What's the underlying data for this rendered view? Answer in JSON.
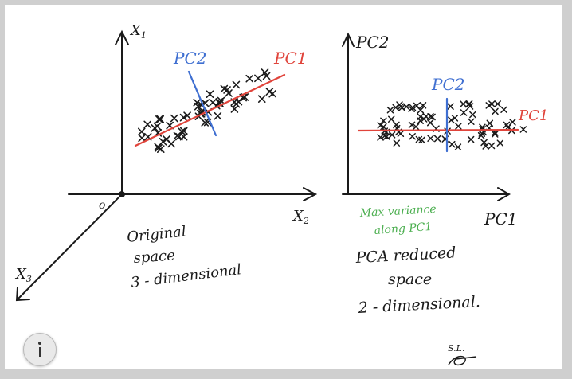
{
  "left_plot": {
    "axis_x1": "X",
    "axis_x1_sub": "1",
    "axis_x2": "X",
    "axis_x2_sub": "2",
    "axis_x3": "X",
    "axis_x3_sub": "3",
    "origin": "o",
    "pc1_label": "PC1",
    "pc2_label": "PC2",
    "caption": [
      "Original",
      "space",
      "3 - dimensional"
    ]
  },
  "right_plot": {
    "axis_y": "PC2",
    "axis_x": "PC1",
    "pc1_label": "PC1",
    "pc2_label": "PC2",
    "note": [
      "Max variance",
      "along PC1"
    ],
    "caption": [
      "PCA  reduced",
      "space",
      "2 - dimensional."
    ]
  },
  "signature": "S.L.",
  "colors": {
    "background": "#cfcfcf",
    "board": "#ffffff",
    "ink": "#1a1a1a",
    "pc1": "#e0443b",
    "pc2": "#3f6fd1",
    "note": "#4caf50"
  },
  "icons": {
    "helper": "accessibility-icon"
  }
}
